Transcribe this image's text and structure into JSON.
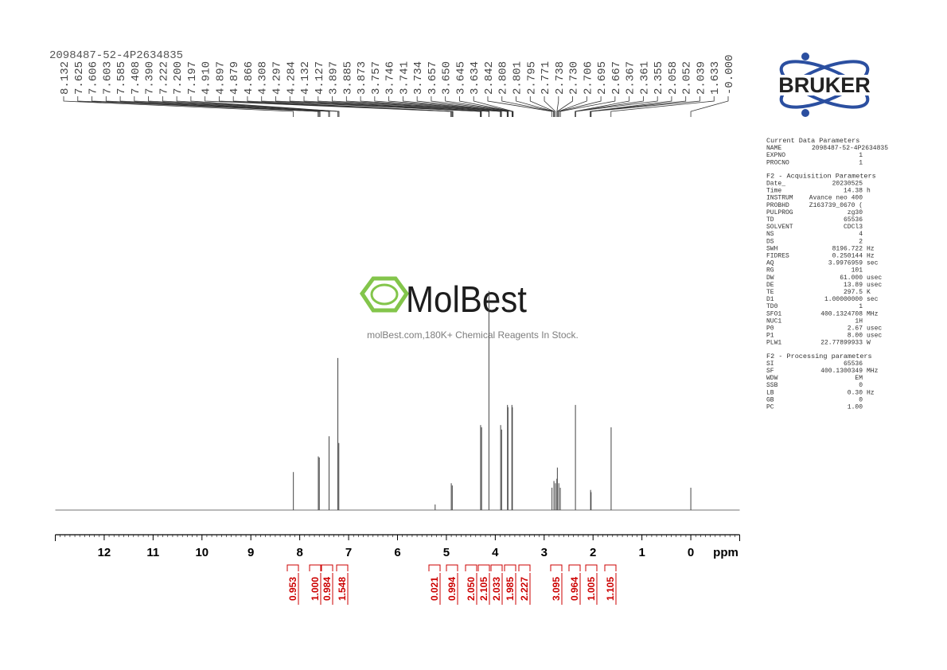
{
  "chart_data": {
    "type": "nmr",
    "title": "2098487-52-4P2634835",
    "xlabel": "ppm",
    "xlim": [
      13,
      -1
    ],
    "xticks": [
      12,
      11,
      10,
      9,
      8,
      7,
      6,
      5,
      4,
      3,
      2,
      1,
      0
    ],
    "ylim": [
      0,
      100
    ],
    "color": "#444444",
    "x": [
      8.13,
      7.62,
      7.6,
      7.4,
      7.22,
      7.2,
      5.23,
      4.9,
      4.88,
      4.3,
      4.28,
      4.13,
      3.89,
      3.87,
      3.75,
      3.74,
      3.66,
      3.65,
      2.84,
      2.8,
      2.77,
      2.74,
      2.73,
      2.7,
      2.67,
      2.36,
      2.05,
      2.04,
      1.63,
      0.0
    ],
    "values": [
      17,
      24,
      23.5,
      33,
      68,
      30,
      2.5,
      12,
      11,
      38,
      37,
      98,
      38,
      36,
      47,
      46,
      47,
      46,
      10,
      13,
      12,
      14,
      19,
      12,
      10,
      47,
      9,
      8,
      37,
      10
    ],
    "peak_labels": [
      "8.132",
      "7.625",
      "7.606",
      "7.603",
      "7.585",
      "7.408",
      "7.390",
      "7.222",
      "7.200",
      "7.197",
      "4.910",
      "4.897",
      "4.879",
      "4.866",
      "4.308",
      "4.297",
      "4.284",
      "4.132",
      "4.127",
      "3.897",
      "3.885",
      "3.873",
      "3.757",
      "3.746",
      "3.741",
      "3.734",
      "3.657",
      "3.650",
      "3.645",
      "3.634",
      "2.842",
      "2.808",
      "2.801",
      "2.795",
      "2.771",
      "2.738",
      "2.730",
      "2.706",
      "2.695",
      "2.667",
      "2.367",
      "2.361",
      "2.355",
      "2.058",
      "2.052",
      "2.039",
      "1.633",
      "-0.000"
    ],
    "integral_color": "#cc0000",
    "integrals": [
      "0.953",
      "1.000",
      "0.984",
      "1.548",
      "0.021",
      "0.994",
      "2.050",
      "2.105",
      "2.033",
      "1.985",
      "2.227",
      "3.095",
      "0.964",
      "1.005",
      "1.105"
    ]
  },
  "logo": {
    "text": "BRUKER"
  },
  "watermark": {
    "title": "MolBest",
    "subtitle": "molBest.com,180K+ Chemical Reagents In Stock."
  },
  "parameters": [
    {
      "heading": "Current Data Parameters",
      "rows": [
        [
          "NAME",
          "2098487-52-4P2634835"
        ],
        [
          "EXPNO",
          "1"
        ],
        [
          "PROCNO",
          "1"
        ]
      ]
    },
    {
      "heading": "F2 - Acquisition Parameters",
      "rows": [
        [
          "Date_",
          "20230525"
        ],
        [
          "Time",
          "14.38",
          "h"
        ],
        [
          "INSTRUM",
          "Avance neo 400"
        ],
        [
          "PROBHD",
          "Z163739_0670 ("
        ],
        [
          "PULPROG",
          "zg30"
        ],
        [
          "TD",
          "65536"
        ],
        [
          "SOLVENT",
          "CDCl3"
        ],
        [
          "NS",
          "4"
        ],
        [
          "DS",
          "2"
        ],
        [
          "SWH",
          "8196.722",
          "Hz"
        ],
        [
          "FIDRES",
          "0.250144",
          "Hz"
        ],
        [
          "AQ",
          "3.9976959",
          "sec"
        ],
        [
          "RG",
          "101"
        ],
        [
          "DW",
          "61.000",
          "usec"
        ],
        [
          "DE",
          "13.89",
          "usec"
        ],
        [
          "TE",
          "297.5",
          "K"
        ],
        [
          "D1",
          "1.00000000",
          "sec"
        ],
        [
          "TD0",
          "1"
        ],
        [
          "SFO1",
          "400.1324708",
          "MHz"
        ],
        [
          "NUC1",
          "1H"
        ],
        [
          "P0",
          "2.67",
          "usec"
        ],
        [
          "P1",
          "8.00",
          "usec"
        ],
        [
          "PLW1",
          "22.77899933",
          "W"
        ]
      ]
    },
    {
      "heading": "F2 - Processing parameters",
      "rows": [
        [
          "SI",
          "65536"
        ],
        [
          "SF",
          "400.1300349",
          "MHz"
        ],
        [
          "WDW",
          "EM"
        ],
        [
          "SSB",
          "0"
        ],
        [
          "LB",
          "0.30",
          "Hz"
        ],
        [
          "GB",
          "0"
        ],
        [
          "PC",
          "1.00"
        ]
      ]
    }
  ]
}
